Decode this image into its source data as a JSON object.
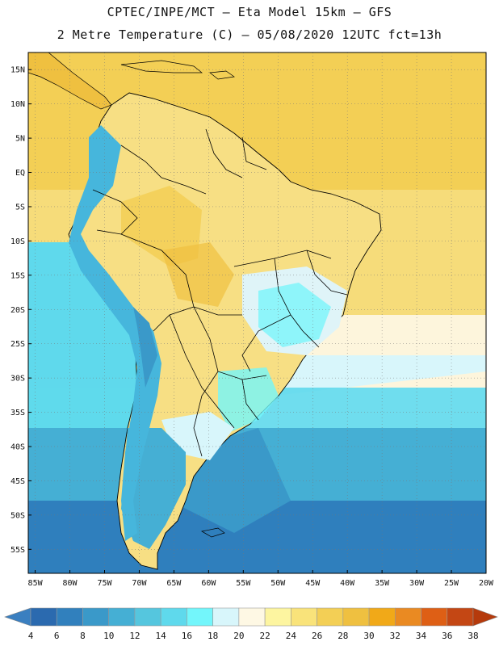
{
  "header": {
    "line1": "CPTEC/INPE/MCT –  Eta Model 15km – GFS",
    "line2": "2 Metre Temperature (C) – 05/08/2020 12UTC fct=13h"
  },
  "map": {
    "lat_labels": [
      "15N",
      "10N",
      "5N",
      "EQ",
      "5S",
      "10S",
      "15S",
      "20S",
      "25S",
      "30S",
      "35S",
      "40S",
      "45S",
      "50S",
      "55S"
    ],
    "lon_labels": [
      "85W",
      "80W",
      "75W",
      "70W",
      "65W",
      "60W",
      "55W",
      "50W",
      "45W",
      "40W",
      "35W",
      "30W",
      "25W",
      "20W"
    ],
    "lat_range": [
      17.5,
      -58.5
    ],
    "lon_range": [
      -86,
      -20
    ],
    "grid": true,
    "colors": {
      "ocean_warm": "#f3cf55",
      "ocean_tropical": "#f6dc7a",
      "ocean_subtropical": "#fdf5dc",
      "ocean_cool": "#5fd9ec",
      "ocean_cold": "#3ca6cc",
      "ocean_colder": "#2f7fbd",
      "land_warm": "#f7df84",
      "land_cool": "#dff4f8",
      "andes": "#46b6dc",
      "border": "#000000"
    }
  },
  "colorbar": {
    "labels": [
      "4",
      "6",
      "8",
      "10",
      "12",
      "14",
      "16",
      "18",
      "20",
      "22",
      "24",
      "26",
      "28",
      "30",
      "32",
      "34",
      "36",
      "38"
    ],
    "colors": [
      "#2b6aaf",
      "#3180bd",
      "#3a99c9",
      "#45afd4",
      "#55c6de",
      "#5fd9ec",
      "#73f6fb",
      "#d8f6fb",
      "#fef8e4",
      "#fdf5a0",
      "#f9e37a",
      "#f3cf55",
      "#efc040",
      "#f1a918",
      "#ea8a22",
      "#de5f15",
      "#c44714"
    ],
    "under_color": "#3a7fc0",
    "over_color": "#b53a0c"
  }
}
